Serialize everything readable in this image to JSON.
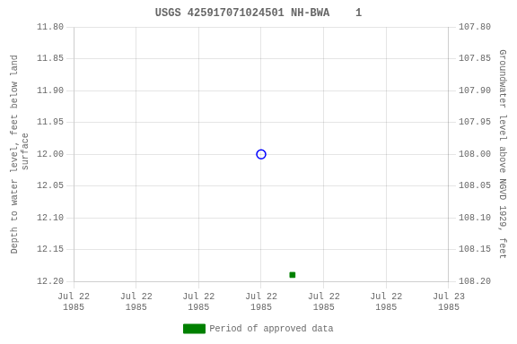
{
  "chart_data": {
    "type": "scatter",
    "title": "USGS 425917071024501 NH-BWA    1",
    "ylabel": "Depth to water level, feet below land\n surface",
    "y2label": "Groundwater level above NGVD 1929, feet",
    "xlim": [
      0,
      24
    ],
    "xticks": [
      {
        "value": 0,
        "label": "Jul 22\n1985"
      },
      {
        "value": 4,
        "label": "Jul 22\n1985"
      },
      {
        "value": 8,
        "label": "Jul 22\n1985"
      },
      {
        "value": 12,
        "label": "Jul 22\n1985"
      },
      {
        "value": 16,
        "label": "Jul 22\n1985"
      },
      {
        "value": 20,
        "label": "Jul 22\n1985"
      },
      {
        "value": 24,
        "label": "Jul 23\n1985"
      }
    ],
    "ylim": [
      12.2,
      11.8
    ],
    "yticks": [
      {
        "value": 11.8,
        "label": "11.80"
      },
      {
        "value": 11.85,
        "label": "11.85"
      },
      {
        "value": 11.9,
        "label": "11.90"
      },
      {
        "value": 11.95,
        "label": "11.95"
      },
      {
        "value": 12.0,
        "label": "12.00"
      },
      {
        "value": 12.05,
        "label": "12.05"
      },
      {
        "value": 12.1,
        "label": "12.10"
      },
      {
        "value": 12.15,
        "label": "12.15"
      },
      {
        "value": 12.2,
        "label": "12.20"
      }
    ],
    "y2lim": [
      108.2,
      107.8
    ],
    "y2ticks": [
      {
        "value": 108.2,
        "label": "108.20"
      },
      {
        "value": 108.15,
        "label": "108.15"
      },
      {
        "value": 108.1,
        "label": "108.10"
      },
      {
        "value": 108.05,
        "label": "108.05"
      },
      {
        "value": 108.0,
        "label": "108.00"
      },
      {
        "value": 107.95,
        "label": "107.95"
      },
      {
        "value": 107.9,
        "label": "107.90"
      },
      {
        "value": 107.85,
        "label": "107.85"
      },
      {
        "value": 107.8,
        "label": "107.80"
      }
    ],
    "grid": true,
    "legend": "bottom",
    "series": [
      {
        "color": "blue",
        "marker": "open_circle",
        "x": [
          12
        ],
        "values": [
          12.0
        ]
      },
      {
        "name": "Period of approved data",
        "color": "green",
        "marker": "square",
        "x": [
          14
        ],
        "values": [
          12.19
        ]
      }
    ]
  }
}
